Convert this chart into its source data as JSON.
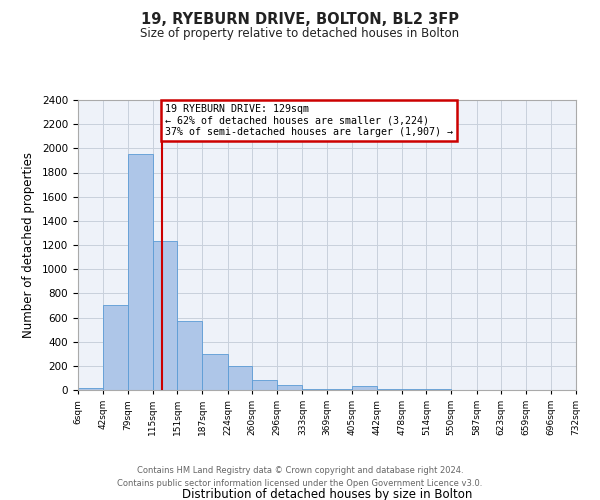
{
  "title": "19, RYEBURN DRIVE, BOLTON, BL2 3FP",
  "subtitle": "Size of property relative to detached houses in Bolton",
  "xlabel": "Distribution of detached houses by size in Bolton",
  "ylabel": "Number of detached properties",
  "bin_edges": [
    6,
    42,
    79,
    115,
    151,
    187,
    224,
    260,
    296,
    333,
    369,
    405,
    442,
    478,
    514,
    550,
    587,
    623,
    659,
    696,
    732
  ],
  "bin_labels": [
    "6sqm",
    "42sqm",
    "79sqm",
    "115sqm",
    "151sqm",
    "187sqm",
    "224sqm",
    "260sqm",
    "296sqm",
    "333sqm",
    "369sqm",
    "405sqm",
    "442sqm",
    "478sqm",
    "514sqm",
    "550sqm",
    "587sqm",
    "623sqm",
    "659sqm",
    "696sqm",
    "732sqm"
  ],
  "counts": [
    15,
    700,
    1950,
    1230,
    575,
    300,
    200,
    80,
    45,
    10,
    5,
    35,
    10,
    5,
    5,
    3,
    2,
    1,
    1,
    1
  ],
  "bar_color": "#aec6e8",
  "bar_edge_color": "#5b9bd5",
  "vline_x": 129,
  "vline_color": "#cc0000",
  "annotation_title": "19 RYEBURN DRIVE: 129sqm",
  "annotation_line1": "← 62% of detached houses are smaller (3,224)",
  "annotation_line2": "37% of semi-detached houses are larger (1,907) →",
  "annotation_box_color": "#cc0000",
  "ylim": [
    0,
    2400
  ],
  "yticks": [
    0,
    200,
    400,
    600,
    800,
    1000,
    1200,
    1400,
    1600,
    1800,
    2000,
    2200,
    2400
  ],
  "footer_line1": "Contains HM Land Registry data © Crown copyright and database right 2024.",
  "footer_line2": "Contains public sector information licensed under the Open Government Licence v3.0.",
  "background_color": "#ffffff",
  "axes_bg_color": "#eef2f9",
  "grid_color": "#c8d0dc"
}
